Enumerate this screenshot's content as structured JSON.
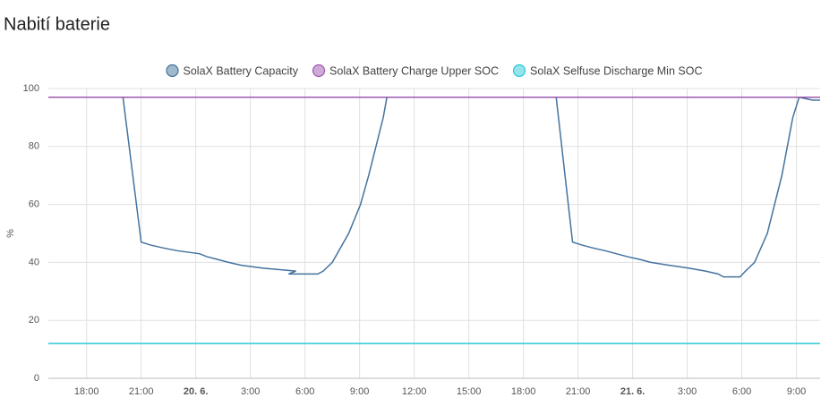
{
  "chart_data": {
    "type": "line",
    "title": "Nabití baterie",
    "y_label": "%",
    "xlim": [
      -2.1,
      40.3
    ],
    "ylim": [
      0,
      100
    ],
    "yticks": [
      0,
      20,
      40,
      60,
      80,
      100
    ],
    "xticks": [
      {
        "value": 0,
        "label": "18:00"
      },
      {
        "value": 3,
        "label": "21:00"
      },
      {
        "value": 6,
        "label": "20. 6."
      },
      {
        "value": 9,
        "label": "3:00"
      },
      {
        "value": 12,
        "label": "6:00"
      },
      {
        "value": 15,
        "label": "9:00"
      },
      {
        "value": 18,
        "label": "12:00"
      },
      {
        "value": 21,
        "label": "15:00"
      },
      {
        "value": 24,
        "label": "18:00"
      },
      {
        "value": 27,
        "label": "21:00"
      },
      {
        "value": 30,
        "label": "21. 6."
      },
      {
        "value": 33,
        "label": "3:00"
      },
      {
        "value": 36,
        "label": "6:00"
      },
      {
        "value": 39,
        "label": "9:00"
      }
    ],
    "grid": true,
    "series": [
      {
        "name": "SolaX Battery Capacity",
        "color": "#44739e",
        "x": [
          -2.1,
          2.0,
          3.0,
          3.5,
          4.2,
          5.0,
          6.2,
          6.6,
          7.2,
          7.8,
          8.5,
          9.7,
          11.5,
          11.1,
          12.7,
          13.0,
          13.5,
          14.4,
          15.05,
          15.5,
          15.9,
          16.3,
          16.5,
          25.8,
          26.7,
          27.2,
          27.8,
          28.5,
          29.1,
          29.7,
          30.4,
          31.0,
          32.0,
          33.1,
          34.0,
          34.7,
          35.0,
          35.9,
          36.2,
          36.7,
          37.4,
          37.8,
          38.2,
          38.5,
          38.8,
          39.15,
          39.9,
          40.3
        ],
        "values": [
          97,
          97,
          47,
          46,
          45,
          44,
          43,
          42,
          41,
          40,
          39,
          38,
          37,
          36,
          36,
          37,
          40,
          50,
          60,
          70,
          80,
          90,
          97,
          97,
          47,
          46,
          45,
          44,
          43,
          42,
          41,
          40,
          39,
          38,
          37,
          36,
          35,
          35,
          37,
          40,
          50,
          60,
          70,
          80,
          90,
          97,
          96,
          96
        ]
      },
      {
        "name": "SolaX Battery Charge Upper SOC",
        "color": "#9e58b0",
        "x": [
          -2.1,
          40.3
        ],
        "values": [
          97,
          97
        ]
      },
      {
        "name": "SolaX Selfuse Discharge Min SOC",
        "color": "#2bc8d8",
        "x": [
          -2.1,
          40.3
        ],
        "values": [
          12,
          12
        ]
      }
    ]
  }
}
